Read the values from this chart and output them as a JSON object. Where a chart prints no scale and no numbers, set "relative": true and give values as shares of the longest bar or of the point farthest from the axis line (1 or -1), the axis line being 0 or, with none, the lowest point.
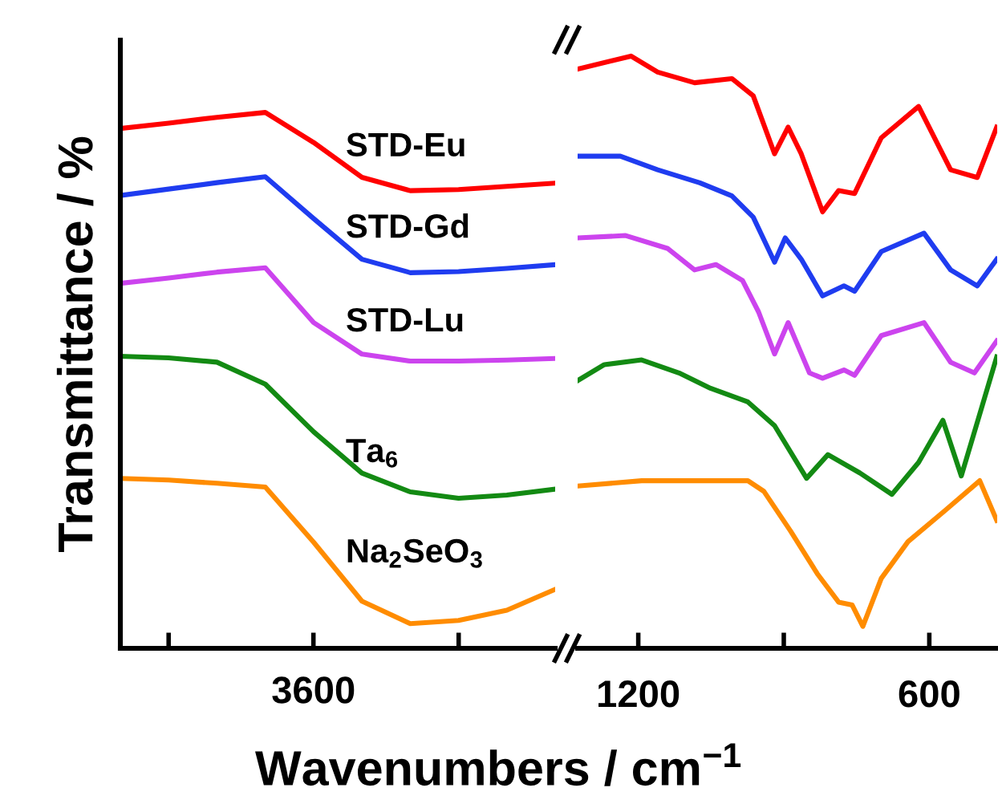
{
  "chart_data": [
    {
      "type": "line",
      "relative": true,
      "ylabel": "Transmittance / %",
      "xlabel": "Wavenumbers / cm$^{−1}$",
      "categories": [
        null,
        null,
        null,
        null,
        null,
        null,
        null,
        null,
        null,
        null
      ],
      "annotations": [
        "3600"
      ],
      "tick_labels": false,
      "legend": false,
      "grid": false,
      "series": [
        {
          "name": "STD-Eu",
          "color": "#ff0000",
          "values": [
            0.97,
            0.98,
            0.991,
            1.0,
            0.944,
            0.879,
            0.854,
            0.856,
            0.862,
            0.868
          ]
        },
        {
          "name": "STD-Gd",
          "color": "#1f3cf0",
          "values": [
            0.845,
            0.857,
            0.869,
            0.88,
            0.802,
            0.726,
            0.701,
            0.703,
            0.709,
            0.716
          ]
        },
        {
          "name": "STD-Lu",
          "color": "#cc44ee",
          "values": [
            0.681,
            0.691,
            0.702,
            0.71,
            0.608,
            0.549,
            0.536,
            0.536,
            0.538,
            0.541
          ]
        },
        {
          "name": "Ta$_{6}$",
          "color": "#138a13",
          "values": [
            0.545,
            0.542,
            0.534,
            0.493,
            0.404,
            0.327,
            0.292,
            0.28,
            0.286,
            0.297
          ]
        },
        {
          "name": "Na$_{2}$SeO$_{3}$",
          "color": "#ff8c00",
          "values": [
            0.317,
            0.314,
            0.308,
            0.301,
            0.198,
            0.088,
            0.046,
            0.052,
            0.071,
            0.11
          ]
        }
      ]
    },
    {
      "type": "line",
      "relative": true,
      "xlim": [
        1325,
        460
      ],
      "xticks": [
        1200,
        {
          "value": 900,
          "label": null
        },
        600
      ],
      "tick_labels": "x",
      "legend": false,
      "grid": false,
      "series": [
        {
          "color": "#ff0000",
          "x": [
            1325,
            1215,
            1160,
            1084,
            1007,
            963,
            919,
            891,
            864,
            820,
            787,
            754,
            699,
            622,
            556,
            501,
            461
          ],
          "values": [
            0.978,
            1.0,
            0.973,
            0.955,
            0.962,
            0.933,
            0.835,
            0.88,
            0.835,
            0.737,
            0.773,
            0.768,
            0.862,
            0.915,
            0.808,
            0.795,
            0.88
          ]
        },
        {
          "color": "#1f3cf0",
          "x": [
            1325,
            1237,
            1160,
            1073,
            1007,
            963,
            919,
            897,
            864,
            820,
            776,
            754,
            699,
            611,
            556,
            501,
            461
          ],
          "values": [
            0.831,
            0.831,
            0.808,
            0.786,
            0.764,
            0.728,
            0.652,
            0.693,
            0.657,
            0.595,
            0.612,
            0.603,
            0.67,
            0.701,
            0.639,
            0.612,
            0.657
          ]
        },
        {
          "color": "#cc44ee",
          "x": [
            1325,
            1226,
            1139,
            1084,
            1040,
            985,
            952,
            919,
            891,
            847,
            820,
            776,
            754,
            699,
            611,
            556,
            507,
            461
          ],
          "values": [
            0.693,
            0.697,
            0.675,
            0.639,
            0.648,
            0.621,
            0.568,
            0.497,
            0.55,
            0.465,
            0.456,
            0.47,
            0.461,
            0.528,
            0.55,
            0.483,
            0.465,
            0.519
          ]
        },
        {
          "color": "#138a13",
          "x": [
            1325,
            1270,
            1193,
            1116,
            1051,
            974,
            919,
            853,
            809,
            743,
            677,
            622,
            572,
            534,
            490,
            461
          ],
          "values": [
            0.452,
            0.479,
            0.487,
            0.465,
            0.439,
            0.416,
            0.376,
            0.287,
            0.327,
            0.296,
            0.26,
            0.314,
            0.385,
            0.291,
            0.412,
            0.492
          ]
        },
        {
          "color": "#ff8c00",
          "x": [
            1325,
            1193,
            974,
            941,
            886,
            831,
            787,
            759,
            737,
            699,
            644,
            567,
            496,
            461
          ],
          "values": [
            0.274,
            0.283,
            0.283,
            0.265,
            0.198,
            0.126,
            0.078,
            0.073,
            0.037,
            0.118,
            0.18,
            0.233,
            0.283,
            0.216
          ]
        }
      ]
    }
  ]
}
